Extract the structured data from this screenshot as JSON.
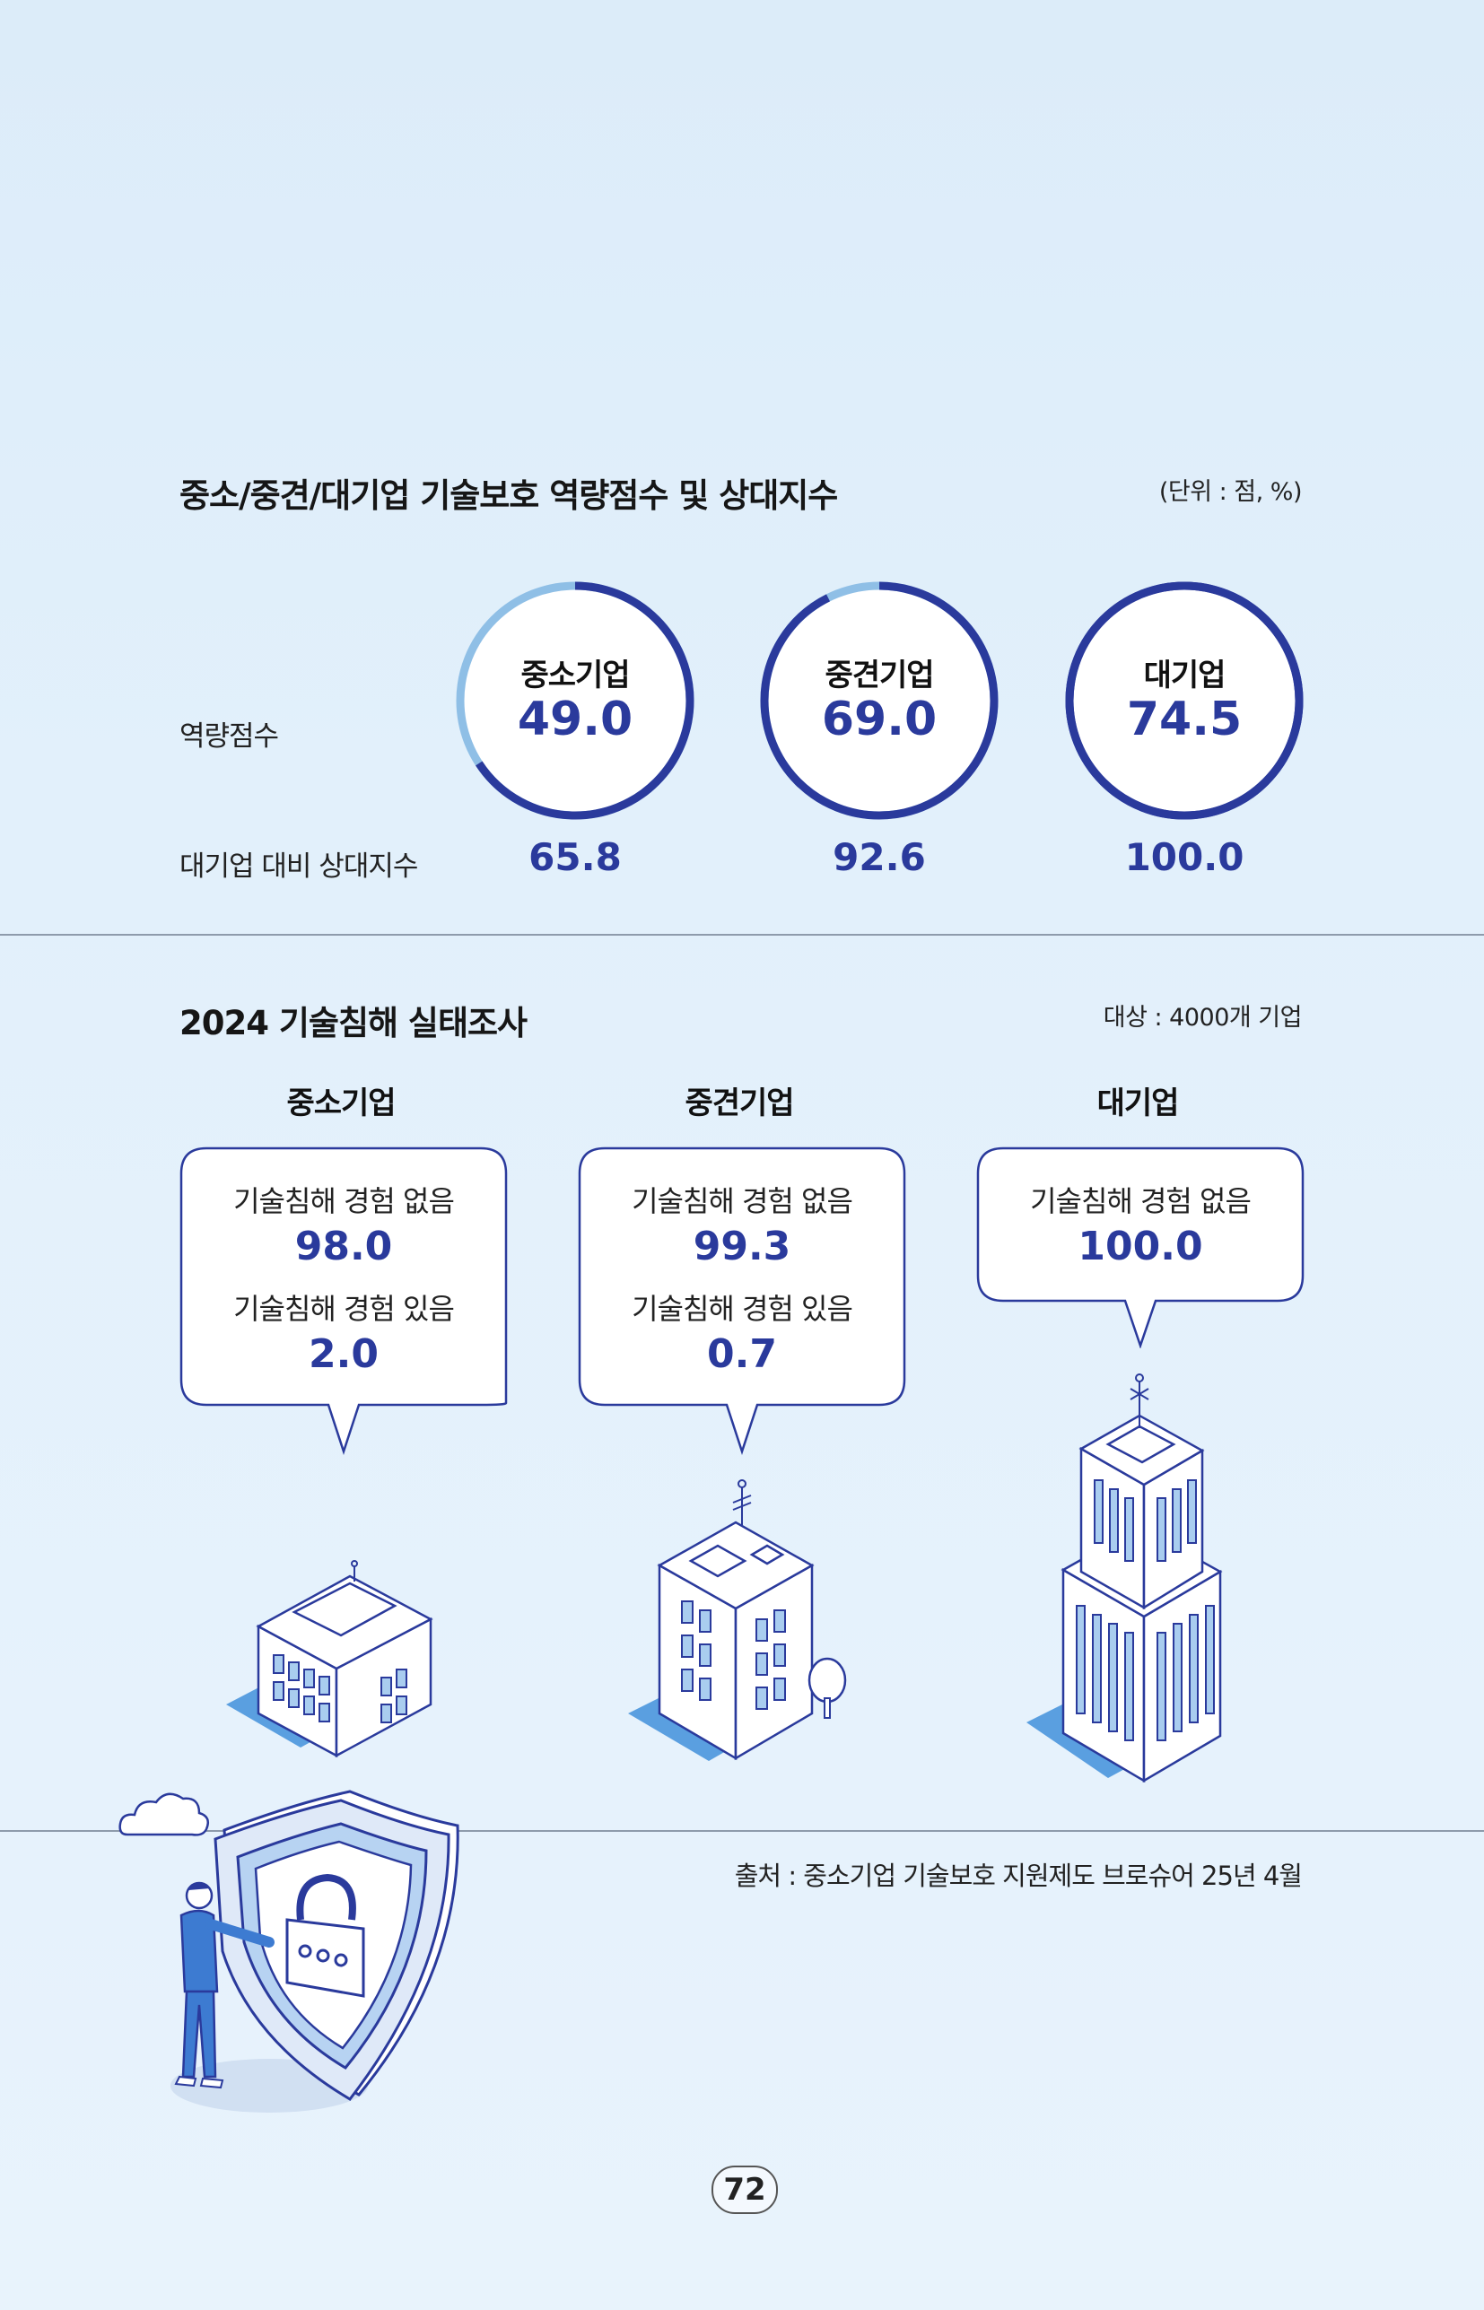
{
  "section1": {
    "title": "중소/중견/대기업 기술보호 역량점수 및 상대지수",
    "unit": "(단위 : 점, %)",
    "row_score_label": "역량점수",
    "row_relative_label": "대기업 대비 상대지수",
    "companies": [
      {
        "name": "중소기업",
        "score": "49.0",
        "relative": "65.8",
        "score_value": 49.0
      },
      {
        "name": "중견기업",
        "score": "69.0",
        "relative": "92.6",
        "score_value": 69.0
      },
      {
        "name": "대기업",
        "score": "74.5",
        "relative": "100.0",
        "score_value": 74.5
      }
    ],
    "colors": {
      "ring_dark": "#2a3a9c",
      "ring_light": "#8fbfe6"
    }
  },
  "section2": {
    "title": "2024 기술침해 실태조사",
    "subject": "대상 : 4000개 기업",
    "columns": [
      {
        "name": "중소기업",
        "no_label": "기술침해 경험 없음",
        "no_value": "98.0",
        "yes_label": "기술침해 경험 있음",
        "yes_value": "2.0"
      },
      {
        "name": "중견기업",
        "no_label": "기술침해 경험 없음",
        "no_value": "99.3",
        "yes_label": "기술침해 경험 있음",
        "yes_value": "0.7"
      },
      {
        "name": "대기업",
        "no_label": "기술침해 경험 없음",
        "no_value": "100.0"
      }
    ]
  },
  "source": "출처 : 중소기업 기술보호 지원제도 브로슈어 25년 4월",
  "page_number": "72"
}
